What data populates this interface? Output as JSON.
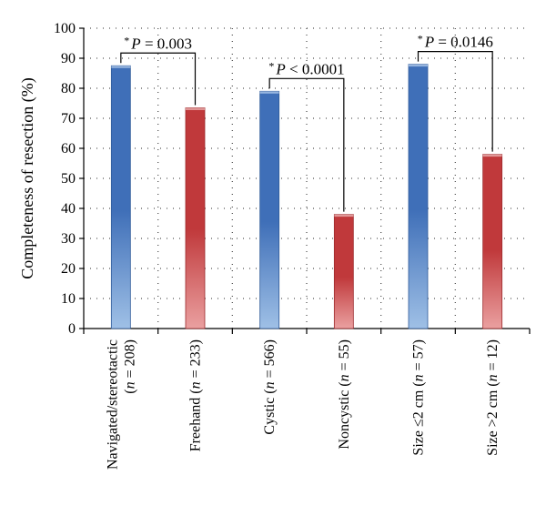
{
  "chart_data": {
    "type": "bar",
    "title": "",
    "xlabel": "",
    "ylabel": "Completeness of resection (%)",
    "ylim": [
      0,
      100
    ],
    "yticks": [
      0,
      10,
      20,
      30,
      40,
      50,
      60,
      70,
      80,
      90,
      100
    ],
    "grid": "dotted",
    "categories": [
      {
        "line1": "Navigated/stereotactic",
        "line2": [
          "(",
          "n",
          " = 208)"
        ],
        "value": 87.5,
        "color": "blue"
      },
      {
        "line1": "",
        "line2": [
          "Freehand (",
          "n",
          " = 233)"
        ],
        "value": 73.5,
        "color": "red"
      },
      {
        "line1": "",
        "line2": [
          "Cystic (",
          "n",
          " = 566)"
        ],
        "value": 79,
        "color": "blue"
      },
      {
        "line1": "",
        "line2": [
          "Noncystic (",
          "n",
          " = 55)"
        ],
        "value": 38,
        "color": "red"
      },
      {
        "line1": "",
        "line2": [
          "Size ≤2 cm (",
          "n",
          " = 57)"
        ],
        "value": 88,
        "color": "blue"
      },
      {
        "line1": "",
        "line2": [
          "Size >2 cm (",
          "n",
          " = 12)"
        ],
        "value": 58,
        "color": "red"
      }
    ],
    "annotations": [
      {
        "from": 0,
        "to": 1,
        "star": "*",
        "p": "P",
        "rel": " = 0.003"
      },
      {
        "from": 2,
        "to": 3,
        "star": "*",
        "p": "P",
        "rel": " < 0.0001"
      },
      {
        "from": 4,
        "to": 5,
        "star": "*",
        "p": "P",
        "rel": " = 0.0146"
      }
    ],
    "colors": {
      "blue_top": "#3f6fb8",
      "blue_bottom": "#9fc0e6",
      "red_top": "#c0393b",
      "red_bottom": "#eaa0a0"
    }
  }
}
